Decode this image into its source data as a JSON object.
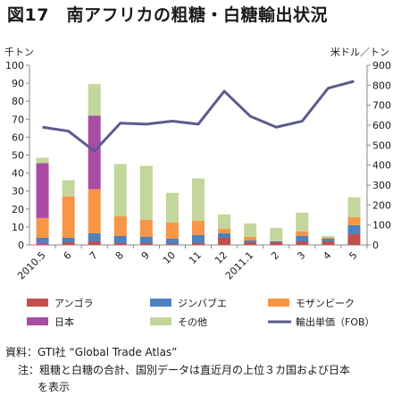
{
  "title": "図17　南アフリカの粗糖・白糖輸出状況",
  "source_line": "資料：GTI社 “Global Trade Atlas”",
  "note_line1": "注：粗糖と白糖の合計、国別データは直近月の上位３カ国および日本",
  "note_line2": "を表示",
  "chart_data": {
    "type": "bar",
    "stacked": true,
    "categories": [
      "2010.5",
      "6",
      "7",
      "8",
      "9",
      "10",
      "11",
      "12",
      "2011.1",
      "2",
      "3",
      "4",
      "5"
    ],
    "left_axis": {
      "unit": "千トン",
      "ylim": [
        0,
        100
      ],
      "ticks": [
        0,
        10,
        20,
        30,
        40,
        50,
        60,
        70,
        80,
        90,
        100
      ]
    },
    "right_axis": {
      "unit": "米ドル／トン",
      "ylim": [
        0,
        900
      ],
      "ticks": [
        0,
        100,
        200,
        300,
        400,
        500,
        600,
        700,
        800,
        900
      ]
    },
    "series": [
      {
        "name": "アンゴラ",
        "color": "#c0504d",
        "values": [
          0.5,
          1.5,
          2,
          1,
          1,
          0.5,
          1,
          4,
          1.5,
          1.5,
          2,
          2,
          6
        ]
      },
      {
        "name": "ジンバブエ",
        "color": "#4f81bd",
        "values": [
          3.5,
          2.5,
          4.5,
          4,
          3.5,
          3,
          4.5,
          2.5,
          1,
          0.5,
          3,
          1.5,
          5
        ]
      },
      {
        "name": "モザンビーク",
        "color": "#f79646",
        "values": [
          11,
          23,
          24.5,
          11,
          9.5,
          9,
          8,
          2.5,
          2,
          0,
          2.5,
          0.5,
          4.5
        ]
      },
      {
        "name": "日本",
        "color": "#a94ca3",
        "values": [
          30.5,
          0,
          41,
          0,
          0,
          0,
          0,
          0,
          0,
          0,
          0,
          0,
          0
        ]
      },
      {
        "name": "その他",
        "color": "#c3d69b",
        "values": [
          3,
          9,
          17.5,
          29,
          30,
          16.5,
          23.5,
          8,
          7.5,
          7.5,
          10.5,
          1,
          11
        ]
      }
    ],
    "line": {
      "name": "輸出単価（FOB）",
      "color": "#5b5b8f",
      "axis": "right",
      "values": [
        590,
        570,
        470,
        610,
        605,
        620,
        605,
        770,
        645,
        590,
        620,
        785,
        820
      ]
    },
    "legend_position": "bottom",
    "grid": false
  }
}
